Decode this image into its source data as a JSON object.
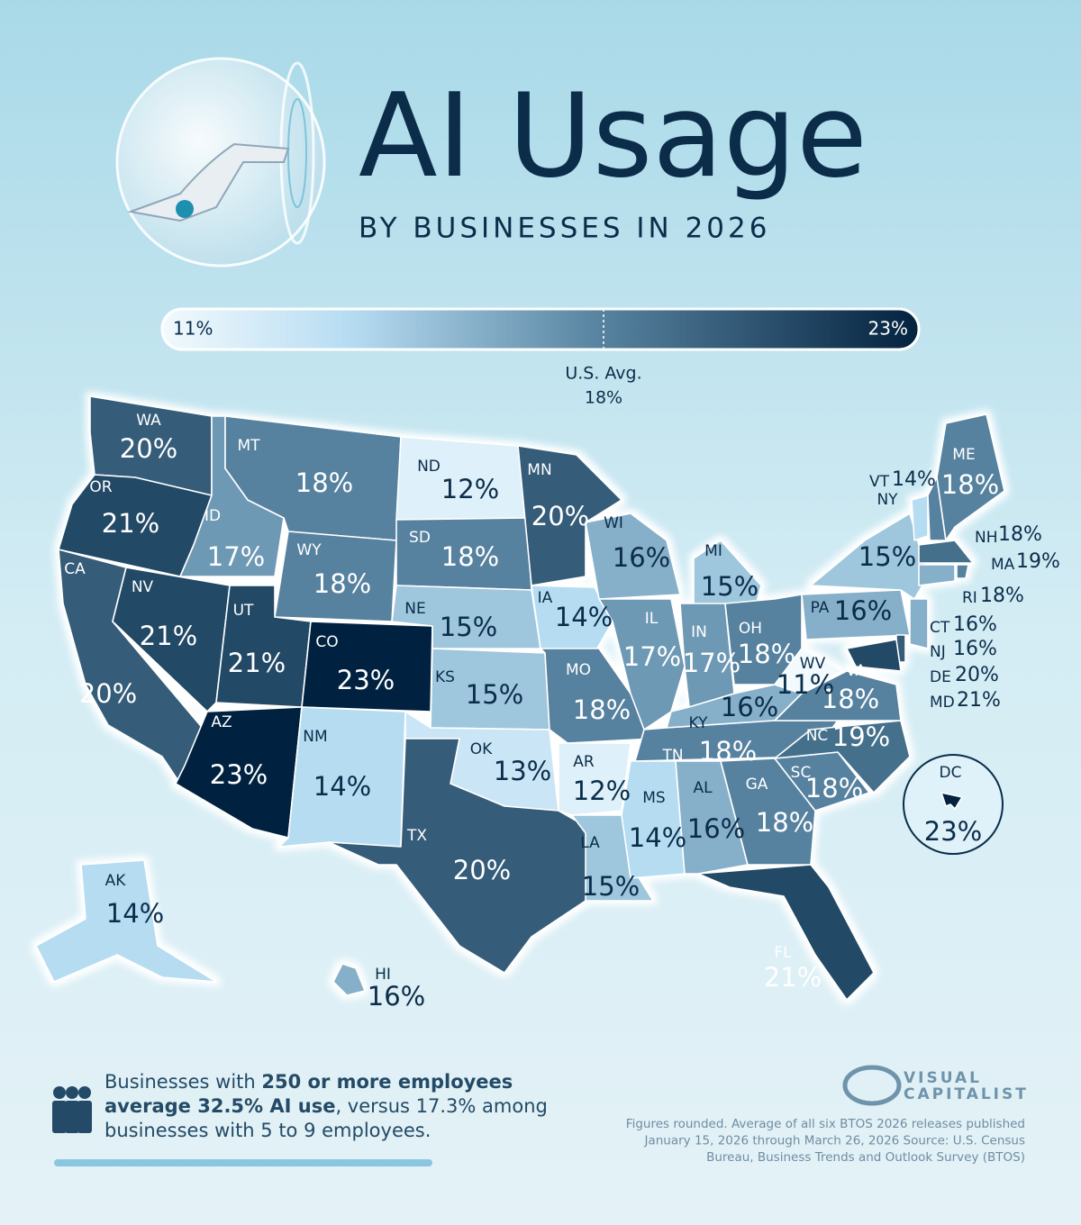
{
  "chart_data": {
    "type": "choropleth",
    "title": "AI Usage",
    "subtitle": "BY BUSINESSES IN 2026",
    "categories": [
      "WA",
      "OR",
      "CA",
      "NV",
      "ID",
      "MT",
      "WY",
      "UT",
      "AZ",
      "CO",
      "NM",
      "ND",
      "SD",
      "NE",
      "KS",
      "OK",
      "TX",
      "MN",
      "IA",
      "MO",
      "AR",
      "LA",
      "WI",
      "IL",
      "MI",
      "IN",
      "OH",
      "KY",
      "TN",
      "MS",
      "AL",
      "GA",
      "FL",
      "SC",
      "NC",
      "VA",
      "WV",
      "PA",
      "NY",
      "VT",
      "NH",
      "ME",
      "MA",
      "RI",
      "CT",
      "NJ",
      "DE",
      "MD",
      "DC",
      "AK",
      "HI"
    ],
    "values": [
      20,
      21,
      20,
      21,
      17,
      18,
      18,
      21,
      23,
      23,
      14,
      12,
      18,
      15,
      15,
      13,
      20,
      20,
      14,
      18,
      12,
      15,
      16,
      17,
      15,
      17,
      18,
      16,
      18,
      14,
      16,
      18,
      21,
      18,
      19,
      18,
      11,
      16,
      15,
      14,
      18,
      18,
      19,
      18,
      16,
      16,
      20,
      21,
      23,
      14,
      16
    ],
    "value_labels": [
      "20%",
      "21%",
      "20%",
      "21%",
      "17%",
      "18%",
      "18%",
      "21%",
      "23%",
      "23%",
      "14%",
      "12%",
      "18%",
      "15%",
      "15%",
      "13%",
      "20%",
      "20%",
      "14%",
      "18%",
      "12%",
      "15%",
      "16%",
      "17%",
      "15%",
      "17%",
      "18%",
      "16%",
      "18%",
      "14%",
      "16%",
      "18%",
      "21%",
      "18%",
      "19%",
      "18%",
      "11%",
      "16%",
      "15%",
      "14%",
      "18%",
      "18%",
      "19%",
      "18%",
      "16%",
      "16%",
      "20%",
      "21%",
      "23%",
      "14%",
      "16%"
    ],
    "color_scale": {
      "min": 11,
      "max": 23,
      "min_label": "11%",
      "max_label": "23%",
      "stops": [
        11,
        14,
        18,
        23
      ],
      "colors": [
        "#f2fafd",
        "#b6dcf2",
        "#56829f",
        "#03223f"
      ]
    },
    "average": {
      "label": "U.S. Avg.",
      "value": 18,
      "value_label": "18%"
    }
  },
  "note": [
    [
      {
        "text": "Businesses with ",
        "bold": false
      },
      {
        "text": "250 or more employees",
        "bold": true
      }
    ],
    [
      {
        "text": "average 32.5% AI use",
        "bold": true
      },
      {
        "text": ", versus 17.3% among",
        "bold": false
      }
    ],
    [
      {
        "text": "businesses with 5 to 9 employees.",
        "bold": false
      }
    ]
  ],
  "source": [
    "Figures rounded. Average of all six BTOS 2026 releases published",
    "January 15, 2026 through March 26, 2026 Source: U.S. Census",
    "Bureau, Business Trends and Outlook Survey (BTOS)"
  ],
  "logo": [
    "VISUAL",
    "CAPITALIST"
  ]
}
